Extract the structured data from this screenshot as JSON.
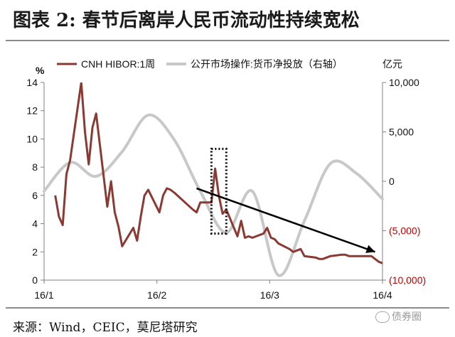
{
  "figure": {
    "title": "图表 2:  春节后离岸人民币流动性持续宽松",
    "source": "来源：Wind，CEIC，莫尼塔研究",
    "watermark": "债券圈"
  },
  "chart_data": {
    "type": "line",
    "left_unit": "%",
    "right_unit": "亿元",
    "left_axis": {
      "ylim": [
        0,
        14
      ],
      "ticks": [
        "0",
        "2",
        "4",
        "6",
        "8",
        "10",
        "12",
        "14"
      ]
    },
    "right_axis": {
      "ylim": [
        -10000,
        10000
      ],
      "ticks": [
        "(10,000)",
        "(5,000)",
        "0",
        "5,000",
        "10,000"
      ],
      "tick_values": [
        -10000,
        -5000,
        0,
        5000,
        10000
      ]
    },
    "x_axis": {
      "labels": [
        "16/1",
        "16/2",
        "16/3",
        "16/4"
      ]
    },
    "colors": {
      "hibor": "#8b3a33",
      "injection": "#c8c8c8",
      "negative_tick": "#c00000",
      "arrow": "#000000",
      "box": "#000000"
    },
    "series": [
      {
        "name": "CNH HIBOR:1周",
        "axis": "left",
        "x": [
          "2016-01-04",
          "2016-01-05",
          "2016-01-06",
          "2016-01-07",
          "2016-01-08",
          "2016-01-11",
          "2016-01-12",
          "2016-01-13",
          "2016-01-14",
          "2016-01-15",
          "2016-01-18",
          "2016-01-19",
          "2016-01-20",
          "2016-01-21",
          "2016-01-22",
          "2016-01-25",
          "2016-01-26",
          "2016-01-27",
          "2016-01-28",
          "2016-01-29",
          "2016-02-01",
          "2016-02-02",
          "2016-02-03",
          "2016-02-04",
          "2016-02-05",
          "2016-02-10",
          "2016-02-11",
          "2016-02-12",
          "2016-02-15",
          "2016-02-16",
          "2016-02-17",
          "2016-02-18",
          "2016-02-19",
          "2016-02-22",
          "2016-02-23",
          "2016-02-24",
          "2016-02-25",
          "2016-02-26",
          "2016-02-29",
          "2016-03-01",
          "2016-03-02",
          "2016-03-03",
          "2016-03-04",
          "2016-03-07",
          "2016-03-08",
          "2016-03-09",
          "2016-03-10",
          "2016-03-11",
          "2016-03-14",
          "2016-03-15",
          "2016-03-16",
          "2016-03-17",
          "2016-03-18",
          "2016-03-21",
          "2016-03-22",
          "2016-03-23",
          "2016-03-24",
          "2016-03-29",
          "2016-03-30",
          "2016-03-31",
          "2016-04-01"
        ],
        "y": [
          6.0,
          4.5,
          3.9,
          7.5,
          8.5,
          14.0,
          10.5,
          8.2,
          10.8,
          11.8,
          5.2,
          7.0,
          4.8,
          3.8,
          2.4,
          3.7,
          2.8,
          4.5,
          6.0,
          6.4,
          4.8,
          6.0,
          6.5,
          6.4,
          6.2,
          5.0,
          4.8,
          5.5,
          5.5,
          7.9,
          6.0,
          4.7,
          5.0,
          3.1,
          4.2,
          3.0,
          3.1,
          3.0,
          3.3,
          3.7,
          3.0,
          2.9,
          2.6,
          2.2,
          2.0,
          2.1,
          2.2,
          1.7,
          1.6,
          1.5,
          1.5,
          1.6,
          1.7,
          1.8,
          1.8,
          1.7,
          1.7,
          1.7,
          1.5,
          1.3,
          1.2
        ]
      },
      {
        "name": "公开市场操作:货币净投放（右轴）",
        "axis": "right",
        "x": [
          "2016-01-01",
          "2016-01-08",
          "2016-01-15",
          "2016-01-22",
          "2016-01-29",
          "2016-02-05",
          "2016-02-12",
          "2016-02-19",
          "2016-02-26",
          "2016-03-04",
          "2016-03-11",
          "2016-03-18",
          "2016-03-25",
          "2016-04-01"
        ],
        "y": [
          -1000,
          1900,
          500,
          3000,
          6700,
          4200,
          -1000,
          -5200,
          -1000,
          -9500,
          -4000,
          1800,
          800,
          -1800
        ]
      }
    ],
    "annotations": [
      {
        "type": "dashed-box",
        "x": [
          "2016-02-15",
          "2016-02-19"
        ],
        "y": [
          3.3,
          9.3
        ]
      },
      {
        "type": "trend-arrow",
        "from": [
          "2016-02-11",
          6.5
        ],
        "to": [
          "2016-03-30",
          2.0
        ]
      }
    ]
  }
}
